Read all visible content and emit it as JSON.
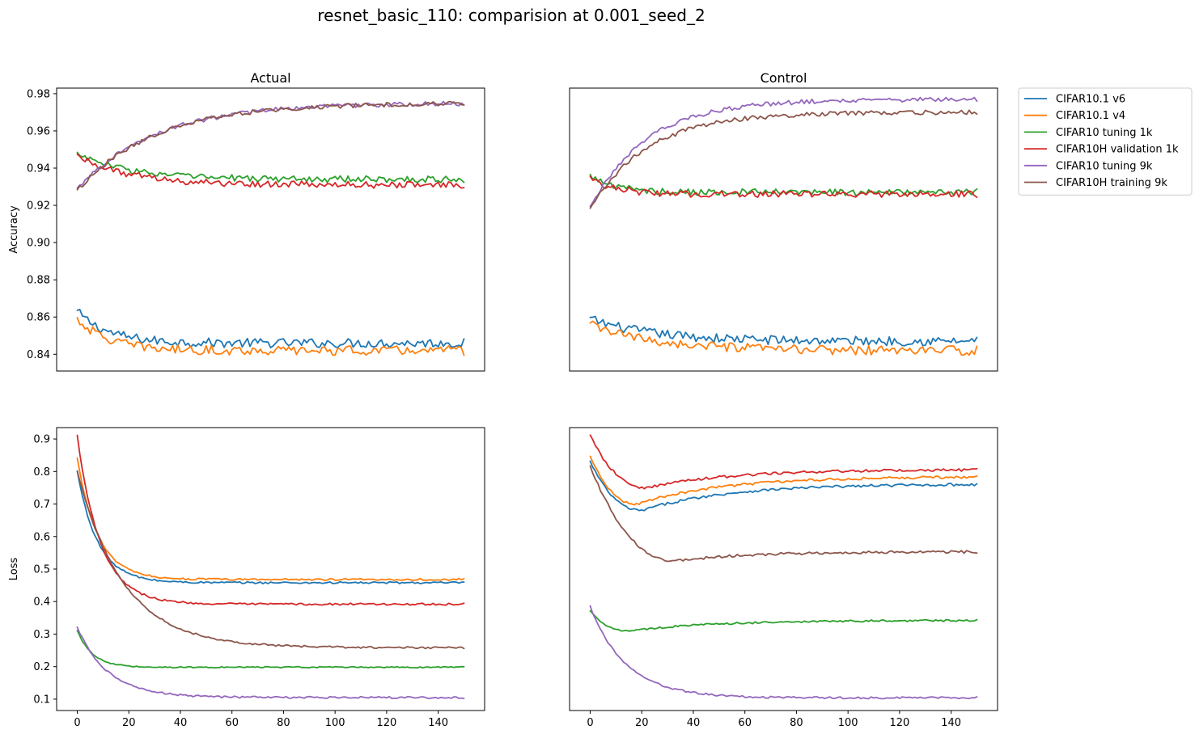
{
  "title": "resnet_basic_110: comparision at 0.001_seed_2",
  "colors": {
    "CIFAR10.1 v6": "#1f77b4",
    "CIFAR10.1 v4": "#ff7f0e",
    "CIFAR10 tuning 1k": "#2ca02c",
    "CIFAR10H validation 1k": "#d62728",
    "CIFAR10 tuning 9k": "#9467bd",
    "CIFAR10H training 9k": "#8c564b"
  },
  "legend": {
    "placement": "outside right, top",
    "entries": [
      "CIFAR10.1 v6",
      "CIFAR10.1 v4",
      "CIFAR10 tuning 1k",
      "CIFAR10H validation 1k",
      "CIFAR10 tuning 9k",
      "CIFAR10H training 9k"
    ]
  },
  "chart_data": [
    {
      "id": "acc-actual",
      "type": "line",
      "title": "Actual",
      "ylabel": "Accuracy",
      "xlabel": "",
      "xlim": [
        -8,
        158
      ],
      "ylim": [
        0.831,
        0.983
      ],
      "yticks": [
        "0.84",
        "0.86",
        "0.88",
        "0.90",
        "0.92",
        "0.94",
        "0.96",
        "0.98"
      ],
      "xticks": [],
      "x": [
        0,
        150
      ],
      "series": [
        {
          "name": "CIFAR10.1 v6",
          "kind": "exp",
          "start": 0.863,
          "end": 0.846,
          "tau": 12,
          "noise": 0.0025
        },
        {
          "name": "CIFAR10.1 v4",
          "kind": "exp",
          "start": 0.859,
          "end": 0.842,
          "tau": 12,
          "noise": 0.0025
        },
        {
          "name": "CIFAR10 tuning 1k",
          "kind": "exp",
          "start": 0.948,
          "end": 0.934,
          "tau": 20,
          "noise": 0.0018
        },
        {
          "name": "CIFAR10H validation 1k",
          "kind": "exp",
          "start": 0.947,
          "end": 0.931,
          "tau": 20,
          "noise": 0.0018
        },
        {
          "name": "CIFAR10 tuning 9k",
          "kind": "exp",
          "start": 0.929,
          "end": 0.975,
          "tau": 30,
          "noise": 0.0012
        },
        {
          "name": "CIFAR10H training 9k",
          "kind": "exp",
          "start": 0.928,
          "end": 0.975,
          "tau": 30,
          "noise": 0.0012
        }
      ]
    },
    {
      "id": "acc-control",
      "type": "line",
      "title": "Control",
      "ylabel": "",
      "xlabel": "",
      "xlim": [
        -8,
        158
      ],
      "ylim": [
        0.831,
        0.983
      ],
      "yticks": [],
      "xticks": [],
      "x": [
        0,
        150
      ],
      "series": [
        {
          "name": "CIFAR10.1 v6",
          "kind": "exp",
          "start": 0.859,
          "end": 0.847,
          "tau": 25,
          "noise": 0.0025
        },
        {
          "name": "CIFAR10.1 v4",
          "kind": "exp",
          "start": 0.856,
          "end": 0.842,
          "tau": 25,
          "noise": 0.0025
        },
        {
          "name": "CIFAR10 tuning 1k",
          "kind": "exp",
          "start": 0.936,
          "end": 0.927,
          "tau": 10,
          "noise": 0.0018
        },
        {
          "name": "CIFAR10H validation 1k",
          "kind": "exp",
          "start": 0.935,
          "end": 0.926,
          "tau": 10,
          "noise": 0.0018
        },
        {
          "name": "CIFAR10 tuning 9k",
          "kind": "exp",
          "start": 0.919,
          "end": 0.977,
          "tau": 22,
          "noise": 0.0012
        },
        {
          "name": "CIFAR10H training 9k",
          "kind": "exp",
          "start": 0.918,
          "end": 0.97,
          "tau": 22,
          "noise": 0.0012
        }
      ]
    },
    {
      "id": "loss-actual",
      "type": "line",
      "title": "",
      "ylabel": "Loss",
      "xlabel": "",
      "xlim": [
        -8,
        158
      ],
      "ylim": [
        0.065,
        0.935
      ],
      "yticks": [
        "0.1",
        "0.2",
        "0.3",
        "0.4",
        "0.5",
        "0.6",
        "0.7",
        "0.8",
        "0.9"
      ],
      "xticks": [
        "0",
        "20",
        "40",
        "60",
        "80",
        "100",
        "120",
        "140"
      ],
      "x": [
        0,
        150
      ],
      "series": [
        {
          "name": "CIFAR10.1 v6",
          "kind": "exp",
          "start": 0.8,
          "end": 0.458,
          "tau": 8,
          "noise": 0.003
        },
        {
          "name": "CIFAR10.1 v4",
          "kind": "exp",
          "start": 0.84,
          "end": 0.468,
          "tau": 8,
          "noise": 0.003
        },
        {
          "name": "CIFAR10 tuning 1k",
          "kind": "exp",
          "start": 0.31,
          "end": 0.198,
          "tau": 6,
          "noise": 0.002
        },
        {
          "name": "CIFAR10H validation 1k",
          "kind": "exp",
          "start": 0.91,
          "end": 0.392,
          "tau": 9,
          "noise": 0.003
        },
        {
          "name": "CIFAR10 tuning 9k",
          "kind": "exp",
          "start": 0.32,
          "end": 0.105,
          "tau": 12,
          "noise": 0.003
        },
        {
          "name": "CIFAR10H training 9k",
          "kind": "exp",
          "start": 0.8,
          "end": 0.258,
          "tau": 18,
          "noise": 0.003
        }
      ]
    },
    {
      "id": "loss-control",
      "type": "line",
      "title": "",
      "ylabel": "",
      "xlabel": "",
      "xlim": [
        -8,
        158
      ],
      "ylim": [
        0.065,
        0.935
      ],
      "yticks": [],
      "xticks": [
        "0",
        "20",
        "40",
        "60",
        "80",
        "100",
        "120",
        "140"
      ],
      "x": [
        0,
        150
      ],
      "series": [
        {
          "name": "CIFAR10.1 v6",
          "kind": "dip",
          "start": 0.83,
          "min": 0.68,
          "tmin": 20,
          "end": 0.76,
          "noise": 0.004
        },
        {
          "name": "CIFAR10.1 v4",
          "kind": "dip",
          "start": 0.845,
          "min": 0.7,
          "tmin": 18,
          "end": 0.783,
          "noise": 0.004
        },
        {
          "name": "CIFAR10 tuning 1k",
          "kind": "dip",
          "start": 0.37,
          "min": 0.31,
          "tmin": 15,
          "end": 0.342,
          "noise": 0.003
        },
        {
          "name": "CIFAR10H validation 1k",
          "kind": "dip",
          "start": 0.91,
          "min": 0.75,
          "tmin": 22,
          "end": 0.805,
          "noise": 0.004
        },
        {
          "name": "CIFAR10 tuning 9k",
          "kind": "exp",
          "start": 0.385,
          "end": 0.104,
          "tau": 14,
          "noise": 0.003
        },
        {
          "name": "CIFAR10H training 9k",
          "kind": "dip",
          "start": 0.815,
          "min": 0.525,
          "tmin": 33,
          "end": 0.553,
          "noise": 0.004
        }
      ]
    }
  ]
}
